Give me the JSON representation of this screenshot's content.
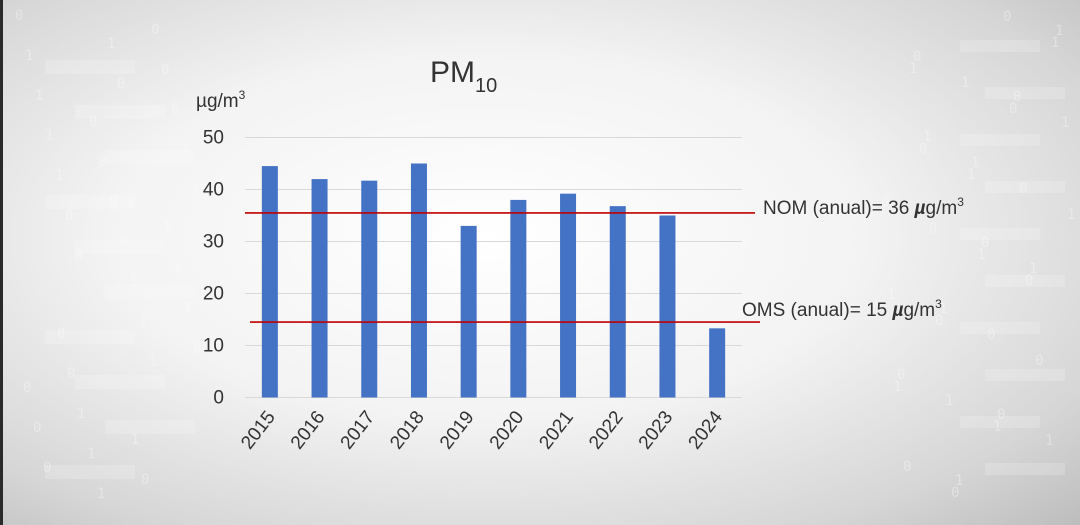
{
  "chart_data": {
    "type": "bar",
    "title": "PM",
    "title_subscript": "10",
    "ylabel": "µg/m",
    "ylabel_sup": "3",
    "categories": [
      "2015",
      "2016",
      "2017",
      "2018",
      "2019",
      "2020",
      "2021",
      "2022",
      "2023",
      "2024"
    ],
    "values": [
      44.5,
      42,
      41.7,
      45,
      33,
      38,
      39.2,
      36.8,
      35,
      13.3
    ],
    "ylim": [
      0,
      50
    ],
    "yticks": [
      0,
      10,
      20,
      30,
      40,
      50
    ],
    "grid": true,
    "bar_color": "#4472c4",
    "reference_lines": [
      {
        "value": 35.5,
        "label": "NOM (anual)= 36 ",
        "unit": "µg/m",
        "unit_sup": "3",
        "color": "#c00000"
      },
      {
        "value": 14.5,
        "label": "OMS (anual)= 15 ",
        "unit": "µg/m",
        "unit_sup": "3",
        "color": "#c00000"
      }
    ]
  }
}
